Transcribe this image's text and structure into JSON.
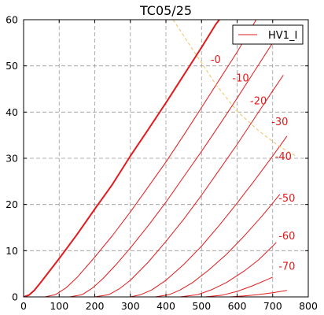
{
  "chart_data": {
    "type": "line",
    "title": "TC05/25",
    "xlim": [
      0,
      800
    ],
    "ylim": [
      0,
      60
    ],
    "x_ticks": [
      "0",
      "100",
      "200",
      "300",
      "400",
      "500",
      "600",
      "700",
      "800"
    ],
    "y_ticks": [
      "0",
      "10",
      "20",
      "30",
      "40",
      "50",
      "60"
    ],
    "grid": true,
    "grid_style": "dashed",
    "legend": {
      "position": "top-right",
      "entries": [
        "HV1_I"
      ]
    },
    "colors": {
      "curves": "#e31a1c",
      "load_line": "#f0c060",
      "grid": "#999999",
      "axes": "#000000"
    },
    "series": [
      {
        "grid_voltage": "-0",
        "label_at": [
          540,
          51.5
        ],
        "thick": true,
        "points": [
          [
            0,
            0
          ],
          [
            15,
            0.4
          ],
          [
            30,
            1.4
          ],
          [
            50,
            3.3
          ],
          [
            75,
            5.8
          ],
          [
            100,
            8.3
          ],
          [
            150,
            13.5
          ],
          [
            200,
            19
          ],
          [
            250,
            24.4
          ],
          [
            300,
            30.5
          ],
          [
            350,
            36.2
          ],
          [
            400,
            42
          ],
          [
            450,
            48
          ],
          [
            500,
            54
          ],
          [
            540,
            59
          ],
          [
            560,
            61
          ]
        ]
      },
      {
        "grid_voltage": "-10",
        "label_at": [
          610,
          47.5
        ],
        "thick": false,
        "points": [
          [
            60,
            0
          ],
          [
            90,
            0.5
          ],
          [
            120,
            2
          ],
          [
            150,
            4.2
          ],
          [
            200,
            8.6
          ],
          [
            250,
            13.3
          ],
          [
            300,
            18.4
          ],
          [
            350,
            23.8
          ],
          [
            400,
            29.2
          ],
          [
            450,
            35
          ],
          [
            500,
            41
          ],
          [
            550,
            47
          ],
          [
            600,
            53
          ],
          [
            650,
            59.5
          ],
          [
            660,
            61
          ]
        ]
      },
      {
        "grid_voltage": "-20",
        "label_at": [
          660,
          42.5
        ],
        "thick": false,
        "points": [
          [
            130,
            0
          ],
          [
            165,
            0.5
          ],
          [
            195,
            2
          ],
          [
            225,
            4.1
          ],
          [
            260,
            7
          ],
          [
            300,
            10.6
          ],
          [
            350,
            15.4
          ],
          [
            400,
            20.5
          ],
          [
            450,
            26
          ],
          [
            500,
            31.5
          ],
          [
            550,
            37.2
          ],
          [
            600,
            43
          ],
          [
            650,
            49
          ],
          [
            700,
            55
          ],
          [
            730,
            58.5
          ]
        ]
      },
      {
        "grid_voltage": "-30",
        "label_at": [
          720,
          38
        ],
        "thick": false,
        "points": [
          [
            200,
            0
          ],
          [
            240,
            0.5
          ],
          [
            270,
            1.8
          ],
          [
            300,
            3.6
          ],
          [
            350,
            7.5
          ],
          [
            400,
            12
          ],
          [
            450,
            16.8
          ],
          [
            500,
            22
          ],
          [
            550,
            27.5
          ],
          [
            600,
            33
          ],
          [
            650,
            38.8
          ],
          [
            700,
            44.6
          ],
          [
            730,
            48
          ]
        ]
      },
      {
        "grid_voltage": "-40",
        "label_at": [
          730,
          30.5
        ],
        "thick": false,
        "points": [
          [
            300,
            0
          ],
          [
            330,
            0.5
          ],
          [
            360,
            1.5
          ],
          [
            400,
            3.6
          ],
          [
            450,
            7
          ],
          [
            500,
            11
          ],
          [
            550,
            15.5
          ],
          [
            600,
            20.3
          ],
          [
            650,
            25.3
          ],
          [
            700,
            30.5
          ],
          [
            740,
            34.8
          ]
        ]
      },
      {
        "grid_voltage": "-50",
        "label_at": [
          740,
          21.5
        ],
        "thick": false,
        "points": [
          [
            370,
            0
          ],
          [
            410,
            0.5
          ],
          [
            440,
            1.5
          ],
          [
            475,
            3.1
          ],
          [
            520,
            5.8
          ],
          [
            570,
            9.2
          ],
          [
            620,
            13.2
          ],
          [
            670,
            17.5
          ],
          [
            700,
            20.3
          ],
          [
            720,
            22.2
          ]
        ]
      },
      {
        "grid_voltage": "-60",
        "label_at": [
          740,
          13.3
        ],
        "thick": false,
        "points": [
          [
            440,
            0
          ],
          [
            490,
            0.5
          ],
          [
            530,
            1.6
          ],
          [
            570,
            3.1
          ],
          [
            620,
            5.6
          ],
          [
            660,
            8
          ],
          [
            700,
            11
          ],
          [
            710,
            11.8
          ]
        ]
      },
      {
        "grid_voltage": "-70",
        "label_at": [
          740,
          6.7
        ],
        "thick": false,
        "points": [
          [
            510,
            0
          ],
          [
            560,
            0.4
          ],
          [
            600,
            1.2
          ],
          [
            640,
            2.3
          ],
          [
            680,
            3.6
          ],
          [
            700,
            4.3
          ]
        ]
      },
      {
        "grid_voltage": "",
        "label_at": null,
        "thick": false,
        "points": [
          [
            580,
            0
          ],
          [
            620,
            0.2
          ],
          [
            660,
            0.5
          ],
          [
            700,
            0.9
          ],
          [
            740,
            1.4
          ]
        ]
      }
    ],
    "load_line": {
      "style": "dashed",
      "points": [
        [
          420,
          60
        ],
        [
          480,
          53
        ],
        [
          540,
          46
        ],
        [
          600,
          40.2
        ],
        [
          660,
          36
        ],
        [
          720,
          32.5
        ],
        [
          765,
          30.5
        ]
      ]
    }
  }
}
